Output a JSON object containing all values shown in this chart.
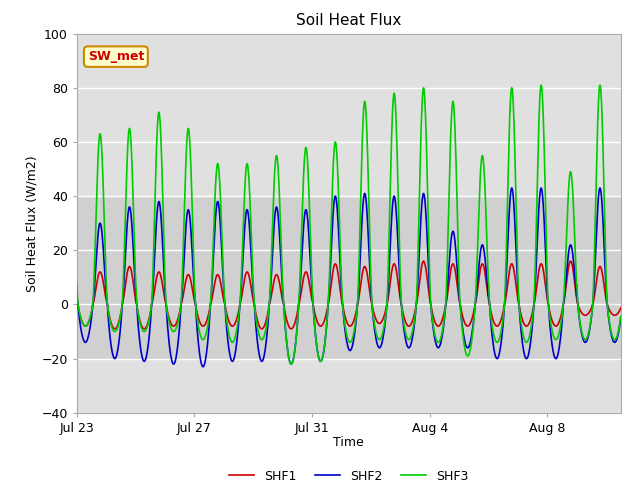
{
  "title": "Soil Heat Flux",
  "xlabel": "Time",
  "ylabel": "Soil Heat Flux (W/m2)",
  "ylim": [
    -40,
    100
  ],
  "yticks": [
    -40,
    -20,
    0,
    20,
    40,
    60,
    80,
    100
  ],
  "xlim_start_day": 0,
  "xlim_end_day": 18.5,
  "xtick_labels": [
    "Jul 23",
    "Jul 27",
    "Jul 31",
    "Aug 4",
    "Aug 8"
  ],
  "xtick_positions": [
    0,
    4,
    8,
    12,
    16
  ],
  "colors": {
    "SHF1": "#cc0000",
    "SHF2": "#0000cc",
    "SHF3": "#00cc00"
  },
  "legend_labels": [
    "SHF1",
    "SHF2",
    "SHF3"
  ],
  "shaded_region": [
    -20,
    40
  ],
  "annotation_box": {
    "text": "SW_met",
    "bg_color": "#ffffcc",
    "border_color": "#cc8800",
    "text_color": "#cc0000"
  },
  "n_cycles": 18,
  "days": 18.5,
  "peak_shf1": [
    12,
    14,
    12,
    11,
    11,
    12,
    11,
    12,
    15,
    14,
    15,
    16,
    15,
    15,
    15,
    15,
    16,
    14
  ],
  "peak_shf2": [
    30,
    36,
    38,
    35,
    38,
    35,
    36,
    35,
    40,
    41,
    40,
    41,
    27,
    22,
    43,
    43,
    22,
    43
  ],
  "peak_shf3": [
    63,
    65,
    71,
    65,
    52,
    52,
    55,
    58,
    60,
    75,
    78,
    80,
    75,
    55,
    80,
    81,
    49,
    81
  ],
  "trough_shf1": [
    -8,
    -9,
    -9,
    -8,
    -8,
    -8,
    -9,
    -9,
    -8,
    -8,
    -7,
    -8,
    -8,
    -8,
    -8,
    -8,
    -8,
    -4
  ],
  "trough_shf2": [
    -14,
    -20,
    -21,
    -22,
    -23,
    -21,
    -21,
    -22,
    -21,
    -17,
    -16,
    -16,
    -16,
    -16,
    -20,
    -20,
    -20,
    -14
  ],
  "trough_shf3": [
    -8,
    -10,
    -10,
    -10,
    -13,
    -14,
    -13,
    -22,
    -21,
    -14,
    -13,
    -13,
    -14,
    -19,
    -14,
    -14,
    -13,
    -13
  ],
  "background_color": "#ffffff",
  "plot_bg_color": "#e0e0e0",
  "shaded_bg_color": "#d0d0d0",
  "grid_color": "#ffffff",
  "line_width": 1.2
}
